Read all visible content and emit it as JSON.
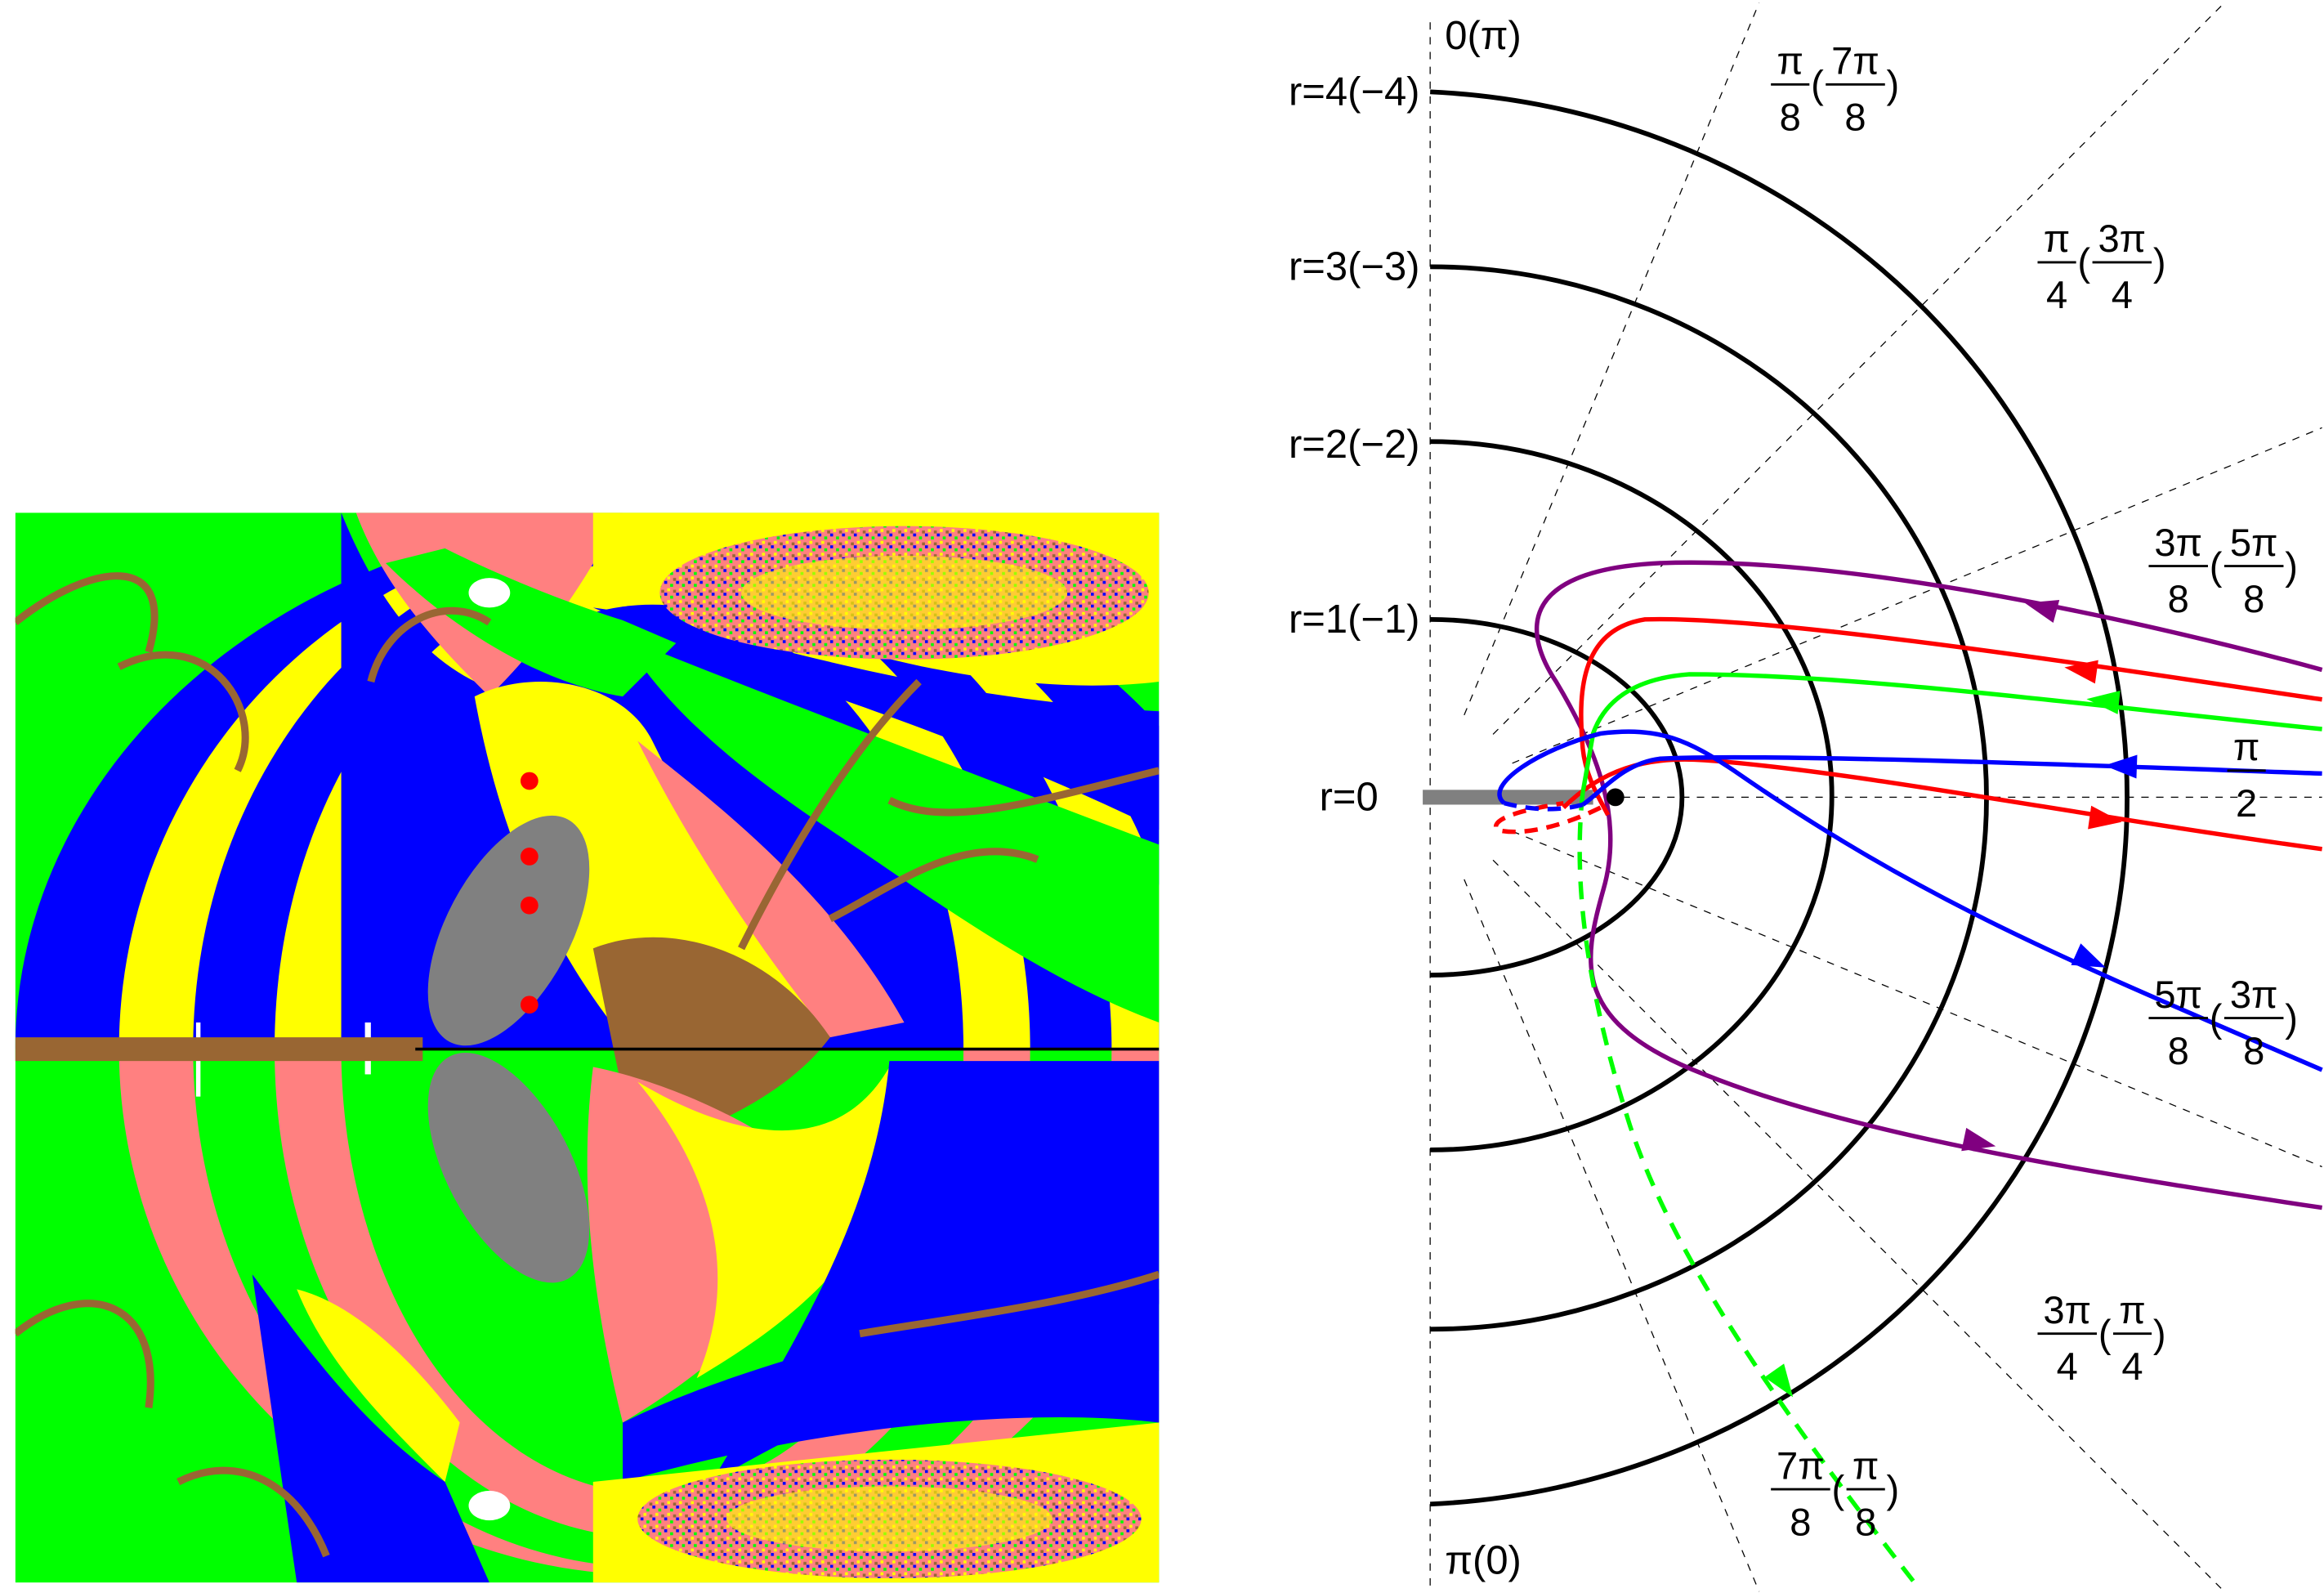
{
  "figure": {
    "left_panel": {
      "colors": {
        "blue": "#0000ff",
        "yellow": "#ffff00",
        "green": "#00ff00",
        "pink": "#ff8080",
        "brown": "#996633",
        "gray": "#808080",
        "white": "#ffffff",
        "marker": "#ff0000"
      },
      "red_markers": 4
    },
    "right_panel": {
      "axis_top_label": "0(π)",
      "axis_bottom_label": "π(0)",
      "radius_labels": [
        "r=4(−4)",
        "r=3(−3)",
        "r=2(−2)",
        "r=1(−1)",
        "r=0"
      ],
      "angle_labels": [
        {
          "num": "π",
          "den": "8",
          "pnum": "7π",
          "pden": "8"
        },
        {
          "num": "π",
          "den": "4",
          "pnum": "3π",
          "pden": "4"
        },
        {
          "num": "3π",
          "den": "8",
          "pnum": "5π",
          "pden": "8"
        },
        {
          "num": "π",
          "den": "2"
        },
        {
          "num": "5π",
          "den": "8",
          "pnum": "3π",
          "pden": "8"
        },
        {
          "num": "3π",
          "den": "4",
          "pnum": "π",
          "pden": "4"
        },
        {
          "num": "7π",
          "den": "8",
          "pnum": "π",
          "pden": "8"
        }
      ],
      "trajectory_colors": {
        "purple": "#800080",
        "red": "#ff0000",
        "green": "#00ff00",
        "blue": "#0000ff"
      }
    }
  }
}
